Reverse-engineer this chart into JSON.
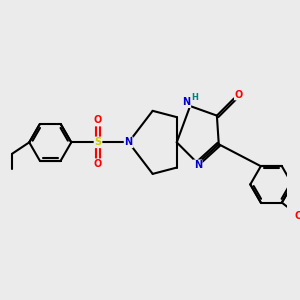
{
  "bg_color": "#ebebeb",
  "bond_color": "#000000",
  "bond_width": 1.5,
  "atom_colors": {
    "N": "#0000cc",
    "O": "#ff0000",
    "S": "#cccc00",
    "H": "#008080",
    "C": "#000000"
  },
  "figsize": [
    3.0,
    3.0
  ],
  "dpi": 100
}
